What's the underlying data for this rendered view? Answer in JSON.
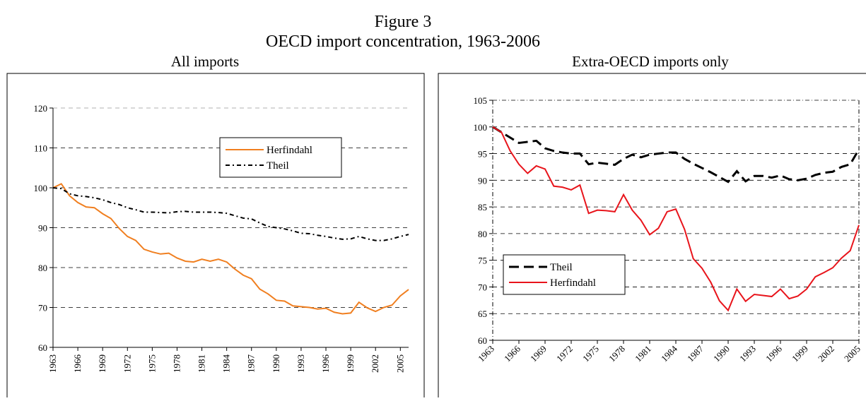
{
  "figure_label": "Figure 3",
  "title": "OECD import concentration, 1963-2006",
  "chart_data": [
    {
      "type": "line",
      "title": "All imports",
      "x": [
        1963,
        1964,
        1965,
        1966,
        1967,
        1968,
        1969,
        1970,
        1971,
        1972,
        1973,
        1974,
        1975,
        1976,
        1977,
        1978,
        1979,
        1980,
        1981,
        1982,
        1983,
        1984,
        1985,
        1986,
        1987,
        1988,
        1989,
        1990,
        1991,
        1992,
        1993,
        1994,
        1995,
        1996,
        1997,
        1998,
        1999,
        2000,
        2001,
        2002,
        2003,
        2004,
        2005,
        2006
      ],
      "xlim": [
        1963,
        2006
      ],
      "xticks": [
        1963,
        1966,
        1969,
        1972,
        1975,
        1978,
        1981,
        1984,
        1987,
        1990,
        1993,
        1996,
        1999,
        2002,
        2005
      ],
      "ylim": [
        60,
        120
      ],
      "yticks": [
        60,
        70,
        80,
        90,
        100,
        110,
        120
      ],
      "grid": true,
      "legend": "upper right",
      "xtick_rotation": 90,
      "series": [
        {
          "name": "Herfindahl",
          "color": "#f07f20",
          "style": "solid",
          "values": [
            100,
            101,
            98,
            96.3,
            95.2,
            95,
            93.5,
            92.3,
            89.8,
            87.8,
            86.8,
            84.6,
            83.9,
            83.4,
            83.6,
            82.4,
            81.6,
            81.4,
            82.1,
            81.6,
            82.1,
            81.4,
            79.6,
            78.1,
            77.2,
            74.6,
            73.4,
            71.8,
            71.6,
            70.4,
            70.2,
            70.0,
            69.6,
            69.8,
            68.8,
            68.4,
            68.6,
            71.3,
            69.9,
            69.0,
            70.0,
            70.6,
            72.9,
            74.5
          ]
        },
        {
          "name": "Theil",
          "color": "#000000",
          "style": "dashdot",
          "values": [
            100,
            99.8,
            98.5,
            98.0,
            97.8,
            97.5,
            97.0,
            96.3,
            95.8,
            95.0,
            94.5,
            93.9,
            93.9,
            93.8,
            93.7,
            94.0,
            94.1,
            93.9,
            93.9,
            93.9,
            93.8,
            93.6,
            93.0,
            92.4,
            92.2,
            91.2,
            90.3,
            90.0,
            89.7,
            89.2,
            88.6,
            88.5,
            88.1,
            87.8,
            87.4,
            87.1,
            87.2,
            87.8,
            87.2,
            86.8,
            86.8,
            87.2,
            87.8,
            88.3
          ]
        }
      ]
    },
    {
      "type": "line",
      "title": "Extra-OECD imports only",
      "x": [
        1963,
        1964,
        1965,
        1966,
        1967,
        1968,
        1969,
        1970,
        1971,
        1972,
        1973,
        1974,
        1975,
        1976,
        1977,
        1978,
        1979,
        1980,
        1981,
        1982,
        1983,
        1984,
        1985,
        1986,
        1987,
        1988,
        1989,
        1990,
        1991,
        1992,
        1993,
        1994,
        1995,
        1996,
        1997,
        1998,
        1999,
        2000,
        2001,
        2002,
        2003,
        2004,
        2005
      ],
      "xlim": [
        1963,
        2005
      ],
      "xticks": [
        1963,
        1966,
        1969,
        1972,
        1975,
        1978,
        1981,
        1984,
        1987,
        1990,
        1993,
        1996,
        1999,
        2002,
        2005
      ],
      "ylim": [
        60,
        105
      ],
      "yticks": [
        60,
        65,
        70,
        75,
        80,
        85,
        90,
        95,
        100,
        105
      ],
      "grid": true,
      "legend": "lower left",
      "xtick_rotation": 45,
      "series": [
        {
          "name": "Theil",
          "color": "#000000",
          "style": "dash",
          "values": [
            100,
            99,
            98,
            97,
            97.2,
            97.4,
            96,
            95.5,
            95.2,
            95,
            95,
            93,
            93.3,
            93.1,
            92.9,
            94,
            94.8,
            94.3,
            94.8,
            95,
            95.2,
            95.2,
            94,
            93.1,
            92.3,
            91.5,
            90.6,
            89.7,
            91.7,
            89.8,
            90.8,
            90.8,
            90.5,
            90.9,
            90.2,
            90,
            90.3,
            91,
            91.4,
            91.6,
            92.5,
            93,
            95.8
          ]
        },
        {
          "name": "Herfindahl",
          "color": "#e8141b",
          "style": "solid",
          "values": [
            100,
            99,
            95.5,
            93,
            91.3,
            92.7,
            92.1,
            88.9,
            88.7,
            88.2,
            89.1,
            83.8,
            84.4,
            84.3,
            84.1,
            87.3,
            84.4,
            82.5,
            79.8,
            81.0,
            84.1,
            84.6,
            80.8,
            75.3,
            73.5,
            70.9,
            67.4,
            65.6,
            69.6,
            67.3,
            68.6,
            68.4,
            68.2,
            69.6,
            67.8,
            68.3,
            69.6,
            71.9,
            72.7,
            73.6,
            75.4,
            76.8,
            81.6
          ]
        }
      ]
    }
  ]
}
